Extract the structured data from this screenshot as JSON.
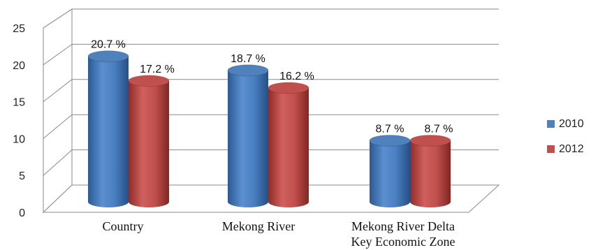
{
  "chart_data": {
    "type": "bar",
    "categories": [
      "Country",
      "Mekong River",
      "Mekong River Delta Key Economic Zone"
    ],
    "category_lines": [
      [
        "Country"
      ],
      [
        "Mekong River"
      ],
      [
        "Mekong River Delta",
        "Key Economic Zone"
      ]
    ],
    "series": [
      {
        "name": "2010",
        "values": [
          20.7,
          18.7,
          8.7
        ],
        "labels": [
          "20.7 %",
          "18.7 %",
          "8.7 %"
        ],
        "color": "#4f81bd"
      },
      {
        "name": "2012",
        "values": [
          17.2,
          16.2,
          8.7
        ],
        "labels": [
          "17.2 %",
          "16.2 %",
          "8.7 %"
        ],
        "color": "#c0504d"
      }
    ],
    "yticks": [
      "0",
      "5",
      "10",
      "15",
      "20",
      "25"
    ],
    "ylim": [
      0,
      25
    ],
    "grid": true,
    "legend_position": "right",
    "style": "3d-cylinder"
  }
}
